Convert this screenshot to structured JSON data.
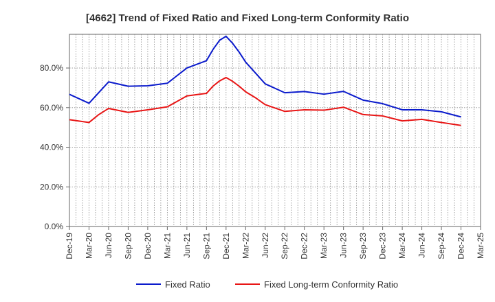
{
  "chart_data": {
    "type": "line",
    "title": "[4662]  Trend of Fixed Ratio and Fixed Long-term Conformity Ratio",
    "xlabel": "",
    "ylabel": "",
    "x": [
      "Dec-19",
      "Mar-20",
      "Jun-20",
      "Sep-20",
      "Dec-20",
      "Mar-21",
      "Jun-21",
      "Sep-21",
      "Dec-21",
      "Mar-22",
      "Jun-22",
      "Sep-22",
      "Dec-22",
      "Mar-23",
      "Jun-23",
      "Sep-23",
      "Dec-23",
      "Mar-24",
      "Jun-24",
      "Sep-24",
      "Dec-24",
      "Mar-25"
    ],
    "ylim": [
      0,
      97
    ],
    "yticks": [
      0,
      20,
      40,
      60,
      80
    ],
    "ytick_labels": [
      "0.0%",
      "20.0%",
      "40.0%",
      "60.0%",
      "80.0%"
    ],
    "grid": true,
    "legend_position": "bottom-center",
    "series": [
      {
        "name": "Fixed Ratio",
        "color": "#0b1bcc",
        "points": [
          [
            0,
            66.7
          ],
          [
            1,
            62.2
          ],
          [
            2,
            73.0
          ],
          [
            3,
            70.8
          ],
          [
            4,
            71.0
          ],
          [
            5,
            72.3
          ],
          [
            6,
            80.0
          ],
          [
            7,
            83.7
          ],
          [
            7.33,
            89.3
          ],
          [
            7.67,
            94.0
          ],
          [
            8,
            96.0
          ],
          [
            8.33,
            92.5
          ],
          [
            8.67,
            88.0
          ],
          [
            9,
            83.0
          ],
          [
            9.5,
            77.5
          ],
          [
            10,
            72.0
          ],
          [
            11,
            67.5
          ],
          [
            12,
            68.1
          ],
          [
            13,
            66.8
          ],
          [
            14,
            68.2
          ],
          [
            15,
            63.8
          ],
          [
            16,
            62.0
          ],
          [
            17,
            58.9
          ],
          [
            18,
            58.9
          ],
          [
            19,
            57.9
          ],
          [
            20,
            55.3
          ]
        ]
      },
      {
        "name": "Fixed Long-term Conformity Ratio",
        "color": "#e81515",
        "points": [
          [
            0,
            53.9
          ],
          [
            1,
            52.5
          ],
          [
            1.5,
            56.5
          ],
          [
            2,
            59.6
          ],
          [
            3,
            57.6
          ],
          [
            4,
            58.9
          ],
          [
            5,
            60.4
          ],
          [
            6,
            65.9
          ],
          [
            7,
            67.2
          ],
          [
            7.33,
            70.8
          ],
          [
            7.67,
            73.5
          ],
          [
            8,
            75.2
          ],
          [
            8.33,
            73.3
          ],
          [
            8.67,
            70.8
          ],
          [
            9,
            68.0
          ],
          [
            9.5,
            65.0
          ],
          [
            10,
            61.5
          ],
          [
            11,
            58.1
          ],
          [
            12,
            58.9
          ],
          [
            13,
            58.7
          ],
          [
            14,
            60.2
          ],
          [
            15,
            56.5
          ],
          [
            16,
            55.8
          ],
          [
            17,
            53.3
          ],
          [
            18,
            54.1
          ],
          [
            19,
            52.5
          ],
          [
            20,
            51.0
          ]
        ]
      }
    ]
  }
}
